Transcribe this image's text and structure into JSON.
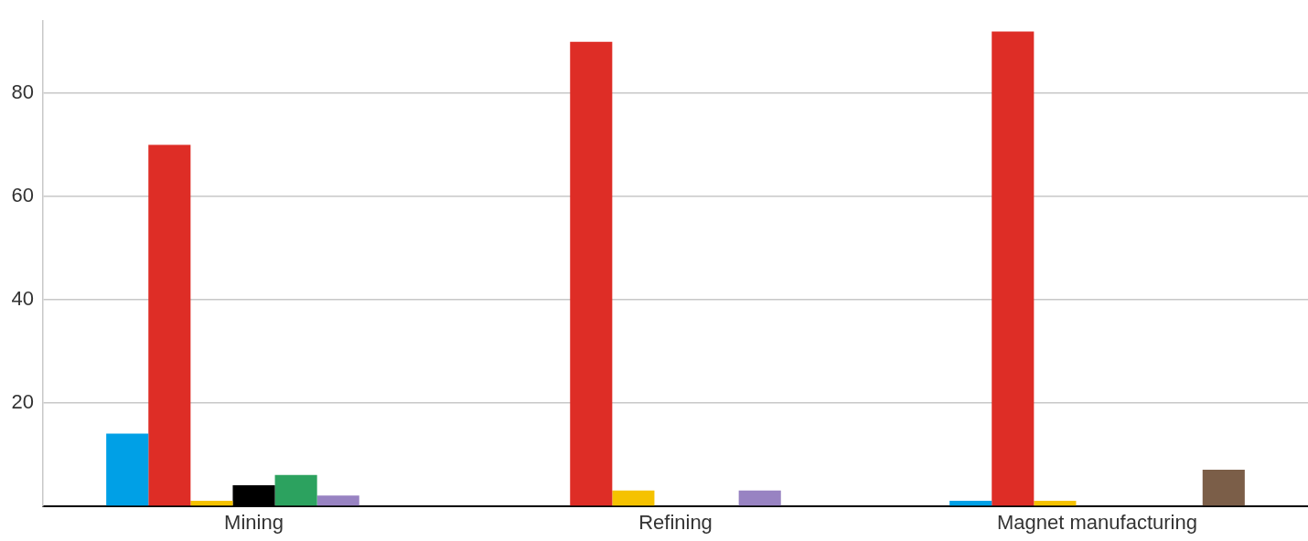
{
  "chart_data": {
    "type": "bar",
    "categories": [
      "Mining",
      "Refining",
      "Magnet manufacturing"
    ],
    "series": [
      {
        "color": "#00a0e6",
        "values": [
          14,
          null,
          1
        ]
      },
      {
        "color": "#de2d26",
        "values": [
          70,
          90,
          92
        ]
      },
      {
        "color": "#f5c200",
        "values": [
          1,
          3,
          1
        ]
      },
      {
        "color": "#000000",
        "values": [
          4,
          null,
          null
        ]
      },
      {
        "color": "#2ca25f",
        "values": [
          6,
          null,
          null
        ]
      },
      {
        "color": "#9883c2",
        "values": [
          2,
          3,
          null
        ]
      },
      {
        "color": "#7b5e48",
        "values": [
          null,
          null,
          7
        ]
      }
    ],
    "ylim": [
      0,
      94
    ],
    "yticks": [
      20,
      40,
      60,
      80
    ],
    "grid": "y",
    "legend": false
  }
}
